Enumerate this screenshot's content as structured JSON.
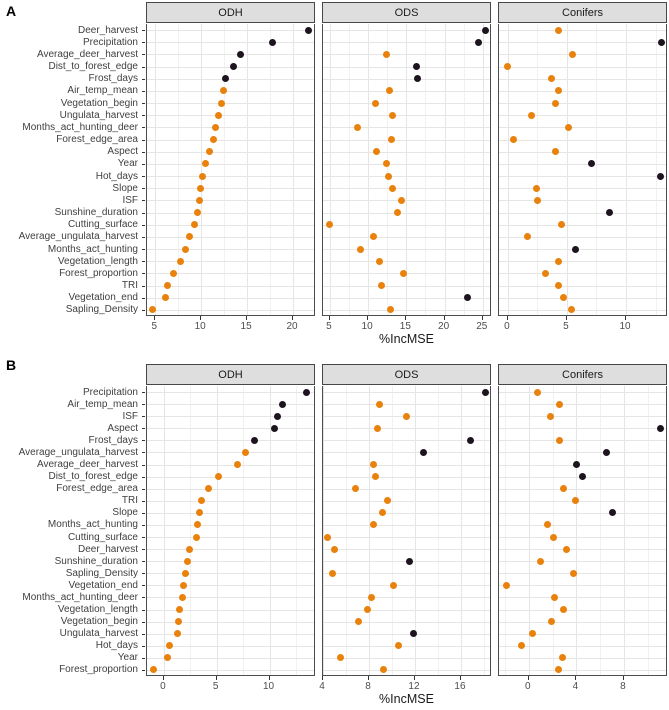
{
  "figure": {
    "corner_a": "A",
    "corner_b": "B",
    "colors": {
      "orange": "#E8820C",
      "black": "#1D1420",
      "strip_bg": "#DEDEDE",
      "panel_border": "#4D4D4D"
    }
  },
  "chart_data": [
    {
      "id": "A",
      "type": "scatter",
      "xlabel": "%IncMSE",
      "legend": "none",
      "grid": "on",
      "categories": [
        "Deer_harvest",
        "Precipitation",
        "Average_deer_harvest",
        "Dist_to_forest_edge",
        "Frost_days",
        "Air_temp_mean",
        "Vegetation_begin",
        "Ungulata_harvest",
        "Months_act_hunting_deer",
        "Forest_edge_area",
        "Aspect",
        "Year",
        "Hot_days",
        "Slope",
        "ISF",
        "Sunshine_duration",
        "Cutting_surface",
        "Average_ungulata_harvest",
        "Months_act_hunting",
        "Vegetation_length",
        "Forest_proportion",
        "TRI",
        "Vegetation_end",
        "Sapling_Density"
      ],
      "facets": [
        {
          "label": "ODH",
          "ticks": [
            5,
            10,
            15,
            20
          ],
          "xlim": [
            4.1,
            22.5
          ],
          "values": [
            21.7,
            17.8,
            14.3,
            13.5,
            12.7,
            12.4,
            12.2,
            11.9,
            11.6,
            11.3,
            10.9,
            10.5,
            10.1,
            9.9,
            9.8,
            9.6,
            9.3,
            8.7,
            8.3,
            7.8,
            7.0,
            6.3,
            6.1,
            4.7
          ],
          "point_colors": [
            "k",
            "k",
            "k",
            "k",
            "k",
            "o",
            "o",
            "o",
            "o",
            "o",
            "o",
            "o",
            "o",
            "o",
            "o",
            "o",
            "o",
            "o",
            "o",
            "o",
            "o",
            "o",
            "o",
            "o"
          ]
        },
        {
          "label": "ODS",
          "ticks": [
            5,
            10,
            15,
            20,
            25
          ],
          "xlim": [
            4.1,
            26.2
          ],
          "values": [
            25.3,
            24.4,
            12.4,
            16.3,
            16.4,
            12.8,
            10.9,
            13.2,
            8.6,
            13.0,
            11.1,
            12.4,
            12.7,
            13.2,
            14.4,
            13.8,
            5.0,
            10.7,
            9.0,
            11.5,
            14.6,
            11.8,
            23.0,
            12.9
          ],
          "point_colors": [
            "k",
            "k",
            "o",
            "k",
            "k",
            "o",
            "o",
            "o",
            "o",
            "o",
            "o",
            "o",
            "o",
            "o",
            "o",
            "o",
            "o",
            "o",
            "o",
            "o",
            "o",
            "o",
            "k",
            "o"
          ]
        },
        {
          "label": "Conifers",
          "ticks": [
            0,
            5,
            10
          ],
          "xlim": [
            -0.75,
            13.55
          ],
          "values": [
            4.3,
            13.0,
            5.5,
            0.0,
            3.7,
            4.3,
            4.0,
            2.0,
            5.1,
            0.5,
            4.0,
            7.1,
            12.9,
            2.4,
            2.5,
            8.6,
            4.5,
            1.7,
            5.7,
            4.3,
            3.2,
            4.3,
            4.7,
            5.4
          ],
          "point_colors": [
            "o",
            "k",
            "o",
            "o",
            "o",
            "o",
            "o",
            "o",
            "o",
            "o",
            "o",
            "k",
            "k",
            "o",
            "o",
            "k",
            "o",
            "o",
            "k",
            "o",
            "o",
            "o",
            "o",
            "o"
          ]
        }
      ]
    },
    {
      "id": "B",
      "type": "scatter",
      "xlabel": "%IncMSE",
      "legend": "none",
      "grid": "on",
      "categories": [
        "Precipitation",
        "Air_temp_mean",
        "ISF",
        "Aspect",
        "Frost_days",
        "Average_ungulata_harvest",
        "Average_deer_harvest",
        "Dist_to_forest_edge",
        "Forest_edge_area",
        "TRI",
        "Slope",
        "Months_act_hunting",
        "Cutting_surface",
        "Deer_harvest",
        "Sunshine_duration",
        "Sapling_Density",
        "Vegetation_end",
        "Months_act_hunting_deer",
        "Vegetation_length",
        "Vegetation_begin",
        "Ungulata_harvest",
        "Hot_days",
        "Year",
        "Forest_proportion"
      ],
      "facets": [
        {
          "label": "ODH",
          "ticks": [
            0,
            5,
            10
          ],
          "xlim": [
            -1.6,
            14.4
          ],
          "values": [
            13.5,
            11.2,
            10.8,
            10.5,
            8.6,
            7.7,
            7.0,
            5.2,
            4.2,
            3.6,
            3.4,
            3.2,
            3.1,
            2.4,
            2.2,
            2.0,
            1.9,
            1.8,
            1.5,
            1.4,
            1.3,
            0.5,
            0.3,
            -1.0
          ],
          "point_colors": [
            "k",
            "k",
            "k",
            "k",
            "k",
            "o",
            "o",
            "o",
            "o",
            "o",
            "o",
            "o",
            "o",
            "o",
            "o",
            "o",
            "o",
            "o",
            "o",
            "o",
            "o",
            "o",
            "o",
            "o"
          ]
        },
        {
          "label": "ODS",
          "ticks": [
            4,
            8,
            12,
            16
          ],
          "xlim": [
            4.0,
            18.7
          ],
          "values": [
            18.1,
            8.9,
            11.3,
            8.7,
            16.8,
            12.7,
            8.4,
            8.6,
            6.8,
            9.6,
            9.2,
            8.4,
            4.4,
            5.0,
            11.5,
            4.8,
            10.1,
            8.2,
            7.9,
            7.1,
            11.9,
            10.6,
            5.5,
            9.3
          ],
          "point_colors": [
            "k",
            "o",
            "o",
            "o",
            "k",
            "k",
            "o",
            "o",
            "o",
            "o",
            "o",
            "o",
            "o",
            "o",
            "k",
            "o",
            "o",
            "o",
            "o",
            "o",
            "k",
            "o",
            "o",
            "o"
          ]
        },
        {
          "label": "Conifers",
          "ticks": [
            0,
            4,
            8
          ],
          "xlim": [
            -2.5,
            11.7
          ],
          "values": [
            0.7,
            2.6,
            1.8,
            11.1,
            2.6,
            6.5,
            4.0,
            4.5,
            2.9,
            3.9,
            7.0,
            1.6,
            2.1,
            3.2,
            1.0,
            3.8,
            -1.9,
            2.2,
            2.9,
            1.9,
            0.3,
            -0.6,
            2.8,
            2.5
          ],
          "point_colors": [
            "o",
            "o",
            "o",
            "k",
            "o",
            "k",
            "k",
            "k",
            "o",
            "o",
            "k",
            "o",
            "o",
            "o",
            "o",
            "o",
            "o",
            "o",
            "o",
            "o",
            "o",
            "o",
            "o",
            "o"
          ]
        }
      ]
    }
  ]
}
